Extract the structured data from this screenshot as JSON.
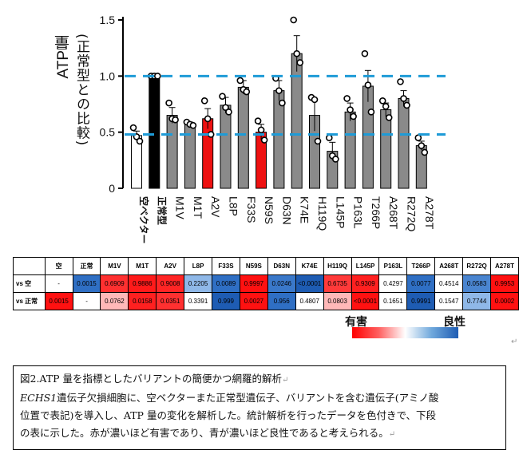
{
  "chart_data": {
    "type": "bar",
    "ylabel": "ATP量",
    "ylabel_sub": "(正常型との比較)",
    "ylim": [
      0,
      1.5
    ],
    "yticks": [
      "0",
      "0.5",
      "1.0",
      "1.5"
    ],
    "reference_lines": [
      1.0,
      0.48
    ],
    "categories": [
      "空ベクター",
      "正常型",
      "M1V",
      "M1T",
      "A2V",
      "L8P",
      "F33S",
      "N59S",
      "D63N",
      "K74E",
      "H119Q",
      "L145P",
      "P163L",
      "T266P",
      "A268T",
      "R272Q",
      "A278T"
    ],
    "values": [
      0.47,
      1.0,
      0.65,
      0.57,
      0.62,
      0.74,
      0.9,
      0.5,
      0.87,
      1.2,
      0.65,
      0.33,
      0.68,
      0.91,
      0.7,
      0.8,
      0.38
    ],
    "errors": [
      0.04,
      0.01,
      0.07,
      0.02,
      0.09,
      0.07,
      0.06,
      0.07,
      0.09,
      0.16,
      0.14,
      0.08,
      0.08,
      0.14,
      0.06,
      0.07,
      0.04
    ],
    "points": [
      [
        0.54,
        0.46,
        0.42
      ],
      [
        1.0,
        1.0,
        1.0
      ],
      [
        0.76,
        0.62,
        0.61
      ],
      [
        0.59,
        0.57,
        0.56
      ],
      [
        0.78,
        0.62,
        0.48
      ],
      [
        0.82,
        0.72,
        0.68
      ],
      [
        0.96,
        0.88,
        0.86
      ],
      [
        0.6,
        0.52,
        0.43
      ],
      [
        0.98,
        0.87,
        0.76
      ],
      [
        1.5,
        1.2,
        1.12
      ],
      [
        0.81,
        0.79,
        0.42
      ],
      [
        0.45,
        0.29,
        0.26
      ],
      [
        0.8,
        0.7,
        0.64
      ],
      [
        1.2,
        0.92,
        0.68
      ],
      [
        0.78,
        0.73,
        0.63
      ],
      [
        0.95,
        0.8,
        0.74
      ],
      [
        0.45,
        0.38,
        0.32
      ]
    ],
    "bar_colors": [
      "#ffffff",
      "#000000",
      "#8a8a8a",
      "#8a8a8a",
      "#ee1111",
      "#8a8a8a",
      "#8a8a8a",
      "#ee1111",
      "#8a8a8a",
      "#8a8a8a",
      "#8a8a8a",
      "#8a8a8a",
      "#8a8a8a",
      "#8a8a8a",
      "#8a8a8a",
      "#8a8a8a",
      "#8a8a8a"
    ],
    "reference_color": "#1e9bd7"
  },
  "table": {
    "corner": "",
    "columns": [
      "空",
      "正常",
      "M1V",
      "M1T",
      "A2V",
      "L8P",
      "F33S",
      "N59S",
      "D63N",
      "K74E",
      "H119Q",
      "L145P",
      "P163L",
      "T266P",
      "A268T",
      "R272Q",
      "A278T"
    ],
    "rows": [
      {
        "label": "vs 空",
        "cells": [
          {
            "text": "-",
            "color": "#ffffff"
          },
          {
            "text": "0.0015",
            "color": "#2f6fc4"
          },
          {
            "text": "0.6909",
            "color": "#ff3030"
          },
          {
            "text": "0.9886",
            "color": "#ff1a1a"
          },
          {
            "text": "0.9008",
            "color": "#ff2525"
          },
          {
            "text": "0.2205",
            "color": "#8fb8e8"
          },
          {
            "text": "0.0089",
            "color": "#2f6fc4"
          },
          {
            "text": "0.9997",
            "color": "#ff1111"
          },
          {
            "text": "0.0246",
            "color": "#3a78c9"
          },
          {
            "text": "<0.0001",
            "color": "#1e5cb3"
          },
          {
            "text": "0.6735",
            "color": "#ff3a3a"
          },
          {
            "text": "0.9309",
            "color": "#ff2020"
          },
          {
            "text": "0.4297",
            "color": "#ffffff"
          },
          {
            "text": "0.0077",
            "color": "#2f6fc4"
          },
          {
            "text": "0.4514",
            "color": "#ffffff"
          },
          {
            "text": "0.0583",
            "color": "#4a85d0"
          },
          {
            "text": "0.9953",
            "color": "#ff1111"
          }
        ]
      },
      {
        "label": "vs 正常",
        "cells": [
          {
            "text": "0.0015",
            "color": "#ff1111"
          },
          {
            "text": "-",
            "color": "#ffffff"
          },
          {
            "text": "0.0762",
            "color": "#ffb8b8"
          },
          {
            "text": "0.0158",
            "color": "#ff2020"
          },
          {
            "text": "0.0351",
            "color": "#ff3030"
          },
          {
            "text": "0.3391",
            "color": "#ffffff"
          },
          {
            "text": "0.999",
            "color": "#1e5cb3"
          },
          {
            "text": "0.0027",
            "color": "#ff1111"
          },
          {
            "text": "0.956",
            "color": "#2f6fc4"
          },
          {
            "text": "0.4807",
            "color": "#ffffff"
          },
          {
            "text": "0.0803",
            "color": "#ffb8b8"
          },
          {
            "text": "<0.0001",
            "color": "#ff1111"
          },
          {
            "text": "0.1651",
            "color": "#ffffff"
          },
          {
            "text": "0.9991",
            "color": "#1e5cb3"
          },
          {
            "text": "0.1547",
            "color": "#ffffff"
          },
          {
            "text": "0.7744",
            "color": "#8fb8e8"
          },
          {
            "text": "0.0002",
            "color": "#ff1111"
          }
        ]
      }
    ]
  },
  "legend": {
    "harmful": "有害",
    "benign": "良性"
  },
  "caption": {
    "line1": "図2.ATP 量を指標としたバリアントの簡便かつ網羅的解析",
    "gene": "ECHS1",
    "line2": "遺伝子欠損細胞に、空ベクターまた正常型遺伝子、バリアントを含む遺伝子(アミノ酸",
    "line3": "位置で表記)を導入し、ATP 量の変化を解析した。統計解析を行ったデータを色付きで、下段",
    "line4": "の表に示した。赤が濃いほど有害であり、青が濃いほど良性であると考えられる。",
    "mark": "↵"
  }
}
